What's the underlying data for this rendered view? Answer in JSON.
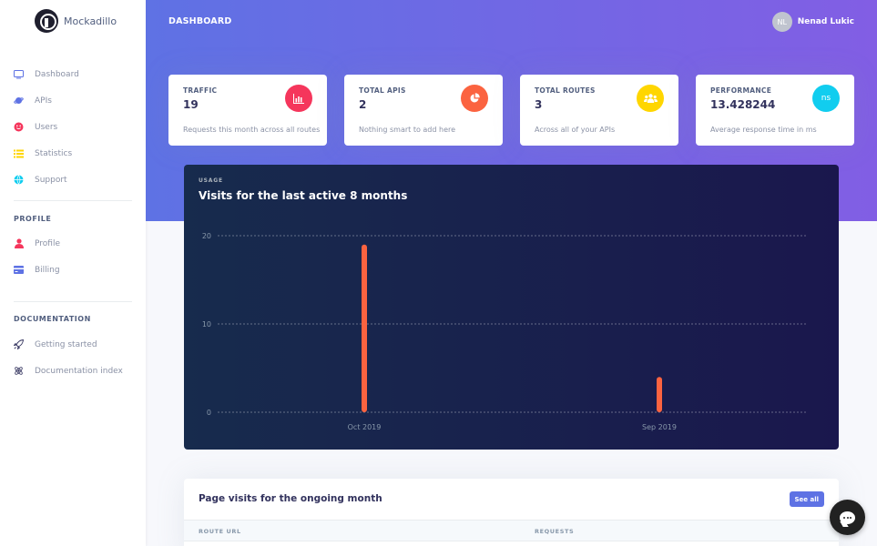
{
  "brand": {
    "name": "Mockadillo",
    "logo_icon": "armadillo-logo-icon"
  },
  "sidebar": {
    "main_items": [
      {
        "label": "Dashboard",
        "icon": "monitor-icon",
        "color": "#5e72e4"
      },
      {
        "label": "APIs",
        "icon": "planet-icon",
        "color": "#5e72e4"
      },
      {
        "label": "Users",
        "icon": "smiley-icon",
        "color": "#f5365c"
      },
      {
        "label": "Statistics",
        "icon": "list-icon",
        "color": "#ffd600"
      },
      {
        "label": "Support",
        "icon": "globe-icon",
        "color": "#11cdef"
      }
    ],
    "profile_title": "PROFILE",
    "profile_items": [
      {
        "label": "Profile",
        "icon": "user-icon",
        "color": "#f5365c"
      },
      {
        "label": "Billing",
        "icon": "credit-card-icon",
        "color": "#5e72e4"
      }
    ],
    "docs_title": "DOCUMENTATION",
    "docs_items": [
      {
        "label": "Getting started",
        "icon": "spaceship-icon",
        "color": "#32325d"
      },
      {
        "label": "Documentation index",
        "icon": "atom-icon",
        "color": "#32325d"
      }
    ]
  },
  "header": {
    "title": "DASHBOARD",
    "user_initials": "NL",
    "user_name": "Nenad Lukic",
    "gradient": [
      "#5e72e4",
      "#825ee4"
    ]
  },
  "cards": [
    {
      "label": "TRAFFIC",
      "value": "19",
      "sub": "Requests this month across all routes",
      "icon": "bar-chart-icon",
      "icon_text": "",
      "color": "#f5365c"
    },
    {
      "label": "TOTAL APIS",
      "value": "2",
      "sub": "Nothing smart to add here",
      "icon": "pie-chart-icon",
      "icon_text": "",
      "color": "#fb6340"
    },
    {
      "label": "TOTAL ROUTES",
      "value": "3",
      "sub": "Across all of your APIs",
      "icon": "users-icon",
      "icon_text": "",
      "color": "#ffd600"
    },
    {
      "label": "PERFORMANCE",
      "value": "13.428244",
      "sub": "Average response time in ms",
      "icon": "ns-icon",
      "icon_text": "ns",
      "color": "#11cdef"
    }
  ],
  "usage": {
    "overline": "USAGE",
    "title": "Visits for the last active 8 months"
  },
  "chart_data": {
    "type": "bar",
    "categories": [
      "Oct 2019",
      "Sep 2019"
    ],
    "values": [
      19,
      4
    ],
    "yticks": [
      20,
      10,
      0
    ],
    "ylim": [
      0,
      20
    ],
    "grid": true,
    "bar_color": "#fb6340"
  },
  "table": {
    "title": "Page visits for the ongoing month",
    "see_all": "See all",
    "columns": [
      "ROUTE URL",
      "REQUESTS"
    ]
  }
}
